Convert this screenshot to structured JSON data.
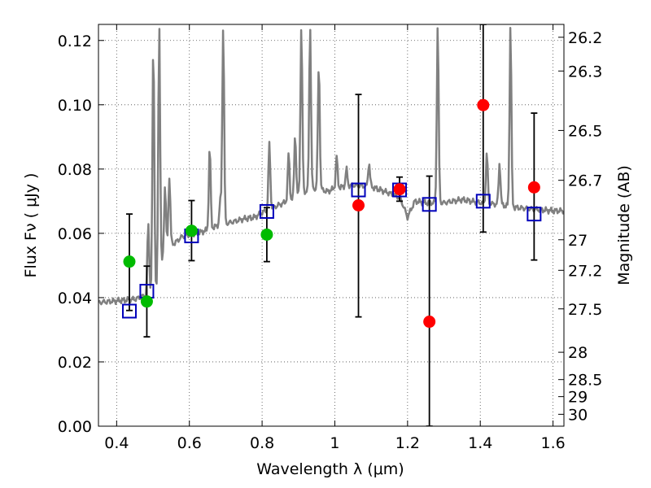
{
  "chart_data": {
    "type": "scatter",
    "title": "",
    "xlabel": "Wavelength  λ (μm)",
    "ylabel": "Flux  Fν  ( μJy )",
    "ylabel_right": "Magnitude (AB)",
    "xlim": [
      0.35,
      1.63
    ],
    "ylim": [
      0.0,
      0.125
    ],
    "grid": true,
    "x_ticks": [
      0.4,
      0.6,
      0.8,
      1.0,
      1.2,
      1.4,
      1.6
    ],
    "x_tick_labels": [
      "0.4",
      "0.6",
      "0.8",
      "1",
      "1.2",
      "1.4",
      "1.6"
    ],
    "y_ticks": [
      0.0,
      0.02,
      0.04,
      0.06,
      0.08,
      0.1,
      0.12
    ],
    "y_tick_labels": [
      "0.00",
      "0.02",
      "0.04",
      "0.06",
      "0.08",
      "0.10",
      "0.12"
    ],
    "right_ticks": [
      {
        "label": "26.2",
        "flux": 0.121
      },
      {
        "label": "26.3",
        "flux": 0.1105
      },
      {
        "label": "26.5",
        "flux": 0.092
      },
      {
        "label": "26.7",
        "flux": 0.0765
      },
      {
        "label": "27",
        "flux": 0.058
      },
      {
        "label": "27.2",
        "flux": 0.0485
      },
      {
        "label": "27.5",
        "flux": 0.0365
      },
      {
        "label": "28",
        "flux": 0.023
      },
      {
        "label": "28.5",
        "flux": 0.0145
      },
      {
        "label": "29",
        "flux": 0.0092
      },
      {
        "label": "30",
        "flux": 0.0037
      }
    ],
    "series": [
      {
        "kind": "line",
        "color": "#808080",
        "continuum": [
          [
            0.35,
            0.0385
          ],
          [
            0.4,
            0.039
          ],
          [
            0.45,
            0.0395
          ],
          [
            0.5,
            0.0415
          ],
          [
            0.515,
            0.043
          ],
          [
            0.525,
            0.051
          ],
          [
            0.54,
            0.056
          ],
          [
            0.56,
            0.057
          ],
          [
            0.58,
            0.059
          ],
          [
            0.6,
            0.0595
          ],
          [
            0.62,
            0.06
          ],
          [
            0.65,
            0.061
          ],
          [
            0.68,
            0.0625
          ],
          [
            0.7,
            0.063
          ],
          [
            0.75,
            0.0645
          ],
          [
            0.78,
            0.065
          ],
          [
            0.8,
            0.0665
          ],
          [
            0.85,
            0.069
          ],
          [
            0.88,
            0.0705
          ],
          [
            0.9,
            0.072
          ],
          [
            0.92,
            0.073
          ],
          [
            0.95,
            0.074
          ],
          [
            0.98,
            0.073
          ],
          [
            1.0,
            0.074
          ],
          [
            1.05,
            0.075
          ],
          [
            1.1,
            0.0745
          ],
          [
            1.15,
            0.0725
          ],
          [
            1.18,
            0.071
          ],
          [
            1.2,
            0.065
          ],
          [
            1.22,
            0.07
          ],
          [
            1.25,
            0.0695
          ],
          [
            1.3,
            0.0695
          ],
          [
            1.35,
            0.0705
          ],
          [
            1.4,
            0.0695
          ],
          [
            1.45,
            0.069
          ],
          [
            1.5,
            0.068
          ],
          [
            1.55,
            0.0675
          ],
          [
            1.6,
            0.067
          ],
          [
            1.63,
            0.067
          ]
        ],
        "emission_lines": [
          [
            0.487,
            0.063
          ],
          [
            0.501,
            0.12
          ],
          [
            0.517,
            0.125
          ],
          [
            0.533,
            0.075
          ],
          [
            0.545,
            0.078
          ],
          [
            0.656,
            0.087
          ],
          [
            0.685,
            0.07
          ],
          [
            0.693,
            0.125
          ],
          [
            0.82,
            0.088
          ],
          [
            0.873,
            0.085
          ],
          [
            0.891,
            0.091
          ],
          [
            0.908,
            0.125
          ],
          [
            0.932,
            0.125
          ],
          [
            0.956,
            0.113
          ],
          [
            1.005,
            0.084
          ],
          [
            1.032,
            0.08
          ],
          [
            1.094,
            0.082
          ],
          [
            1.283,
            0.125
          ],
          [
            1.418,
            0.085
          ],
          [
            1.453,
            0.082
          ],
          [
            1.483,
            0.125
          ]
        ]
      },
      {
        "kind": "points",
        "color": "#00bb00",
        "points": [
          {
            "x": 0.435,
            "y": 0.0512,
            "yerr_lo": 0.036,
            "yerr_hi": 0.066
          },
          {
            "x": 0.483,
            "y": 0.0388,
            "yerr_lo": 0.0278,
            "yerr_hi": 0.0498
          },
          {
            "x": 0.606,
            "y": 0.0608,
            "yerr_lo": 0.0515,
            "yerr_hi": 0.0702
          },
          {
            "x": 0.813,
            "y": 0.0596,
            "yerr_lo": 0.0512,
            "yerr_hi": 0.068
          }
        ]
      },
      {
        "kind": "points",
        "color": "#ff0000",
        "points": [
          {
            "x": 1.065,
            "y": 0.0687,
            "yerr_lo": 0.034,
            "yerr_hi": 0.1032
          },
          {
            "x": 1.178,
            "y": 0.0737,
            "yerr_lo": 0.07,
            "yerr_hi": 0.0775
          },
          {
            "x": 1.26,
            "y": 0.0325,
            "yerr_lo": 0.0,
            "yerr_hi": 0.0778
          },
          {
            "x": 1.408,
            "y": 0.0999,
            "yerr_lo": 0.0604,
            "yerr_hi": 0.125
          },
          {
            "x": 1.548,
            "y": 0.0743,
            "yerr_lo": 0.0517,
            "yerr_hi": 0.0974
          }
        ]
      },
      {
        "kind": "squares",
        "color": "#0000bb",
        "points": [
          {
            "x": 0.435,
            "y": 0.0358
          },
          {
            "x": 0.483,
            "y": 0.042
          },
          {
            "x": 0.606,
            "y": 0.0592
          },
          {
            "x": 0.813,
            "y": 0.0668
          },
          {
            "x": 1.065,
            "y": 0.0735
          },
          {
            "x": 1.178,
            "y": 0.0735
          },
          {
            "x": 1.26,
            "y": 0.069
          },
          {
            "x": 1.408,
            "y": 0.07
          },
          {
            "x": 1.548,
            "y": 0.066
          }
        ]
      }
    ]
  }
}
